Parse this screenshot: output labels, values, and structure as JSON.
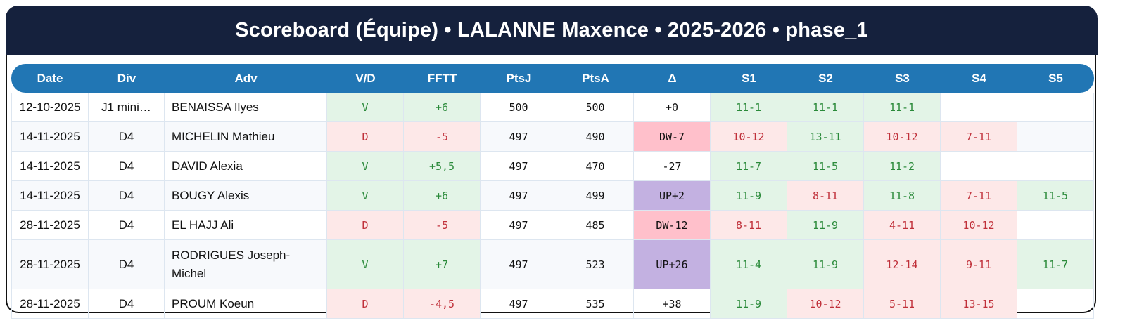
{
  "title": "Scoreboard (Équipe) • LALANNE Maxence • 2025-2026 • phase_1",
  "colors": {
    "title_bg": "#15213d",
    "header_bg": "#2176b4",
    "win_bg": "#e3f4e7",
    "win_text": "#2a8a3a",
    "loss_bg": "#fde8e8",
    "loss_text": "#c0303a",
    "down_bg": "#ffc0cb",
    "up_bg": "#c3b1e1"
  },
  "columns": [
    "Date",
    "Div",
    "Adv",
    "V/D",
    "FFTT",
    "PtsJ",
    "PtsA",
    "Δ",
    "S1",
    "S2",
    "S3",
    "S4",
    "S5"
  ],
  "rows": [
    {
      "date": "12-10-2025",
      "div": "J1 mini…",
      "adv": "BENAISSA Ilyes",
      "vd": "V",
      "fftt": "+6",
      "ptsj": "500",
      "ptsa": "500",
      "delta": "+0",
      "sets": [
        "11-1",
        "11-1",
        "11-1",
        "",
        ""
      ]
    },
    {
      "date": "14-11-2025",
      "div": "D4",
      "adv": "MICHELIN Mathieu",
      "vd": "D",
      "fftt": "-5",
      "ptsj": "497",
      "ptsa": "490",
      "delta": "DW-7",
      "sets": [
        "10-12",
        "13-11",
        "10-12",
        "7-11",
        ""
      ]
    },
    {
      "date": "14-11-2025",
      "div": "D4",
      "adv": "DAVID Alexia",
      "vd": "V",
      "fftt": "+5,5",
      "ptsj": "497",
      "ptsa": "470",
      "delta": "-27",
      "sets": [
        "11-7",
        "11-5",
        "11-2",
        "",
        ""
      ]
    },
    {
      "date": "14-11-2025",
      "div": "D4",
      "adv": "BOUGY Alexis",
      "vd": "V",
      "fftt": "+6",
      "ptsj": "497",
      "ptsa": "499",
      "delta": "UP+2",
      "sets": [
        "11-9",
        "8-11",
        "11-8",
        "7-11",
        "11-5"
      ]
    },
    {
      "date": "28-11-2025",
      "div": "D4",
      "adv": "EL HAJJ Ali",
      "vd": "D",
      "fftt": "-5",
      "ptsj": "497",
      "ptsa": "485",
      "delta": "DW-12",
      "sets": [
        "8-11",
        "11-9",
        "4-11",
        "10-12",
        ""
      ]
    },
    {
      "date": "28-11-2025",
      "div": "D4",
      "adv": "RODRIGUES Joseph-Michel",
      "vd": "V",
      "fftt": "+7",
      "ptsj": "497",
      "ptsa": "523",
      "delta": "UP+26",
      "sets": [
        "11-4",
        "11-9",
        "12-14",
        "9-11",
        "11-7"
      ]
    },
    {
      "date": "28-11-2025",
      "div": "D4",
      "adv": "PROUM Koeun",
      "vd": "D",
      "fftt": "-4,5",
      "ptsj": "497",
      "ptsa": "535",
      "delta": "+38",
      "sets": [
        "11-9",
        "10-12",
        "5-11",
        "13-15",
        ""
      ]
    }
  ]
}
